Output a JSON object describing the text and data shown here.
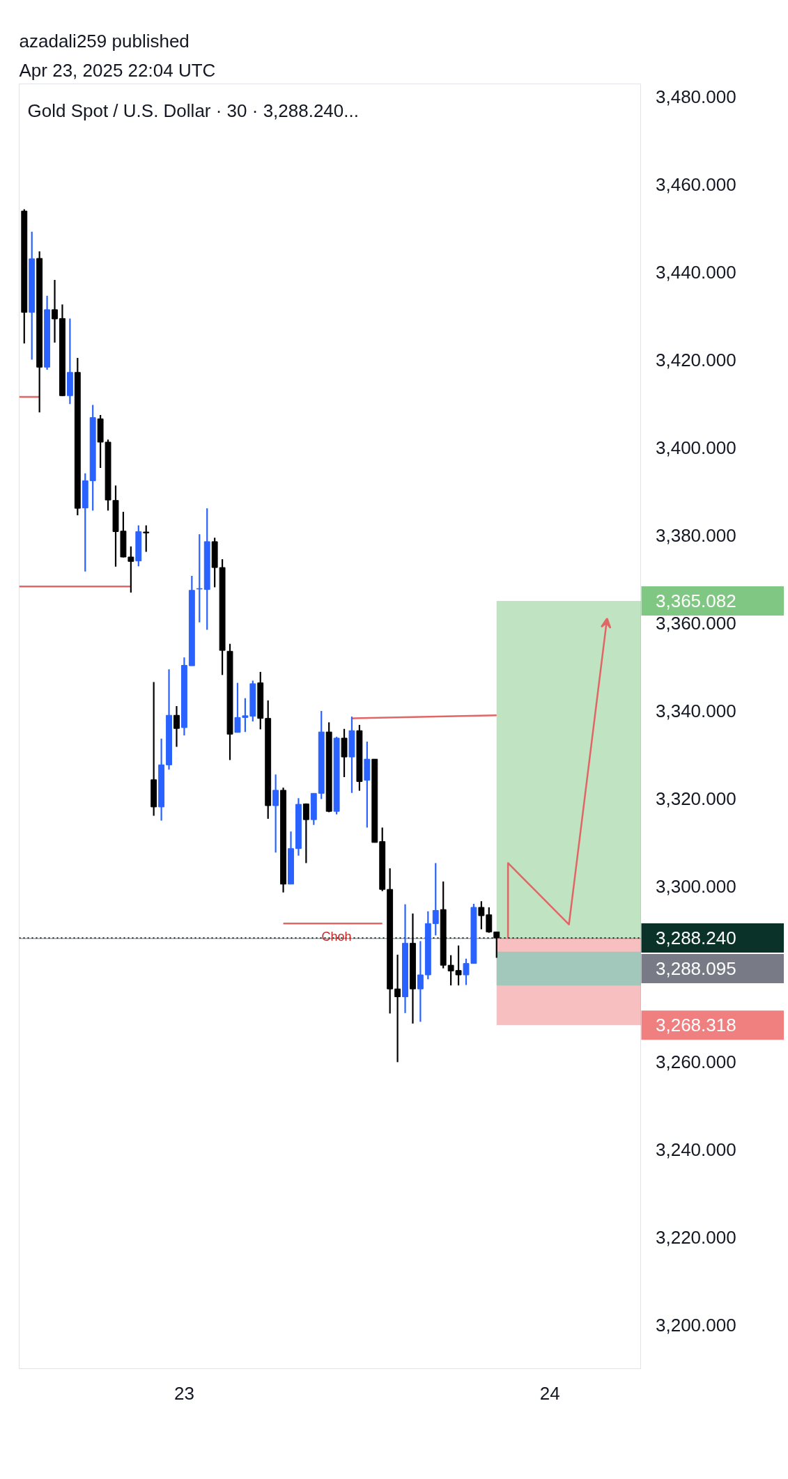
{
  "chart_data": {
    "type": "candlestick",
    "title": "Gold Spot / U.S. Dollar · 30 · 3,288.240...",
    "annotations": [
      "azadali259 published",
      "Apr 23, 2025 22:04 UTC",
      {
        "text": "Choh",
        "x": "2025-04-23T10:00",
        "y": 3288.5
      }
    ],
    "x": [
      "2025-04-22T13:30",
      "2025-04-22T14:00",
      "2025-04-22T14:30",
      "2025-04-22T15:00",
      "2025-04-22T15:30",
      "2025-04-22T16:00",
      "2025-04-22T16:30",
      "2025-04-22T17:00",
      "2025-04-22T17:30",
      "2025-04-22T18:00",
      "2025-04-22T18:30",
      "2025-04-22T19:00",
      "2025-04-22T19:30",
      "2025-04-22T20:00",
      "2025-04-22T20:30",
      "2025-04-22T21:00",
      "2025-04-22T21:30",
      "2025-04-22T22:00",
      "2025-04-22T22:30",
      "2025-04-22T23:00",
      "2025-04-22T23:30",
      "2025-04-23T00:00",
      "2025-04-23T00:30",
      "2025-04-23T01:00",
      "2025-04-23T01:30",
      "2025-04-23T02:00",
      "2025-04-23T02:30",
      "2025-04-23T03:00",
      "2025-04-23T03:30",
      "2025-04-23T04:00",
      "2025-04-23T04:30",
      "2025-04-23T05:00",
      "2025-04-23T05:30",
      "2025-04-23T06:00",
      "2025-04-23T06:30",
      "2025-04-23T07:00",
      "2025-04-23T07:30",
      "2025-04-23T08:00",
      "2025-04-23T08:30",
      "2025-04-23T09:00",
      "2025-04-23T09:30",
      "2025-04-23T10:00",
      "2025-04-23T10:30",
      "2025-04-23T11:00",
      "2025-04-23T11:30",
      "2025-04-23T12:00",
      "2025-04-23T12:30",
      "2025-04-23T13:00",
      "2025-04-23T13:30",
      "2025-04-23T14:00",
      "2025-04-23T14:30",
      "2025-04-23T15:00",
      "2025-04-23T15:30",
      "2025-04-23T16:00",
      "2025-04-23T16:30",
      "2025-04-23T17:00",
      "2025-04-23T17:30",
      "2025-04-23T18:00",
      "2025-04-23T18:30",
      "2025-04-23T19:00",
      "2025-04-23T19:30",
      "2025-04-23T20:00",
      "2025-04-23T20:30"
    ],
    "ohlc": [
      [
        3454.0,
        3454.4,
        3423.8,
        3430.9
      ],
      [
        3430.9,
        3449.3,
        3420.1,
        3443.1
      ],
      [
        3443.2,
        3444.8,
        3408.1,
        3418.4
      ],
      [
        3418.4,
        3434.7,
        3417.8,
        3431.5
      ],
      [
        3431.5,
        3438.3,
        3424.0,
        3429.4
      ],
      [
        3429.5,
        3432.7,
        3411.8,
        3411.9
      ],
      [
        3411.9,
        3429.5,
        3410.0,
        3417.2
      ],
      [
        3417.2,
        3420.5,
        3384.6,
        3386.2
      ],
      [
        3386.3,
        3394.2,
        3371.8,
        3392.5
      ],
      [
        3392.5,
        3409.8,
        3385.7,
        3406.9
      ],
      [
        3406.6,
        3407.5,
        3395.4,
        3401.3
      ],
      [
        3401.3,
        3401.9,
        3385.7,
        3388.1
      ],
      [
        3388.0,
        3391.4,
        3372.9,
        3380.9
      ],
      [
        3381.0,
        3385.4,
        3375.0,
        3375.1
      ],
      [
        3375.1,
        3377.5,
        3367.0,
        3374.1
      ],
      [
        3374.2,
        3382.3,
        3373.0,
        3380.9
      ],
      [
        3380.8,
        3382.3,
        3376.3,
        3380.6
      ],
      [
        3324.3,
        3346.6,
        3316.1,
        3318.1
      ],
      [
        3318.1,
        3333.7,
        3315.0,
        3327.7
      ],
      [
        3327.7,
        3349.5,
        3326.6,
        3339.0
      ],
      [
        3339.0,
        3341.1,
        3331.8,
        3336.0
      ],
      [
        3336.2,
        3352.2,
        3334.4,
        3350.4
      ],
      [
        3350.3,
        3370.8,
        3350.3,
        3367.5
      ],
      [
        3367.8,
        3380.3,
        3360.2,
        3367.9
      ],
      [
        3367.7,
        3386.2,
        3358.5,
        3378.6
      ],
      [
        3378.6,
        3379.5,
        3368.2,
        3372.7
      ],
      [
        3372.7,
        3374.6,
        3348.2,
        3353.8
      ],
      [
        3353.6,
        3355.3,
        3328.8,
        3334.7
      ],
      [
        3335.1,
        3346.4,
        3335.1,
        3338.5
      ],
      [
        3338.5,
        3342.9,
        3335.2,
        3338.9
      ],
      [
        3338.8,
        3346.9,
        3337.6,
        3346.2
      ],
      [
        3346.4,
        3348.9,
        3335.8,
        3338.3
      ],
      [
        3338.3,
        3342.4,
        3315.4,
        3318.4
      ],
      [
        3318.4,
        3325.5,
        3307.7,
        3321.9
      ],
      [
        3321.9,
        3322.5,
        3298.6,
        3300.5
      ],
      [
        3300.5,
        3312.5,
        3300.5,
        3308.6
      ],
      [
        3308.6,
        3320.1,
        3307.0,
        3318.7
      ],
      [
        3318.8,
        3318.9,
        3305.3,
        3315.2
      ],
      [
        3315.2,
        3321.2,
        3314.0,
        3321.2
      ],
      [
        3321.2,
        3340.0,
        3319.9,
        3335.2
      ],
      [
        3335.2,
        3337.4,
        3316.9,
        3317.1
      ],
      [
        3317.1,
        3334.1,
        3316.4,
        3333.8
      ],
      [
        3333.8,
        3335.9,
        3324.9,
        3329.5
      ],
      [
        3329.5,
        3338.7,
        3321.3,
        3335.5
      ],
      [
        3335.5,
        3336.8,
        3321.8,
        3323.9
      ],
      [
        3324.2,
        3333.0,
        3313.4,
        3329.0
      ],
      [
        3329.0,
        3329.0,
        3310.0,
        3310.0
      ],
      [
        3310.2,
        3313.4,
        3298.9,
        3299.3
      ],
      [
        3299.3,
        3304.1,
        3271.0,
        3276.6
      ],
      [
        3276.6,
        3284.4,
        3259.9,
        3274.8
      ],
      [
        3274.8,
        3295.9,
        3271.1,
        3287.0
      ],
      [
        3287.0,
        3293.8,
        3268.7,
        3276.6
      ],
      [
        3276.6,
        3287.5,
        3269.1,
        3279.8
      ],
      [
        3279.8,
        3294.3,
        3278.8,
        3291.5
      ],
      [
        3291.5,
        3305.3,
        3288.8,
        3294.5
      ],
      [
        3294.7,
        3301.1,
        3281.3,
        3282.0
      ],
      [
        3282.0,
        3284.3,
        3277.4,
        3280.7
      ],
      [
        3280.8,
        3286.5,
        3277.4,
        3279.8
      ],
      [
        3279.8,
        3283.5,
        3277.5,
        3282.4
      ],
      [
        3282.4,
        3296.0,
        3282.4,
        3295.2
      ],
      [
        3295.2,
        3296.6,
        3290.2,
        3293.3
      ],
      [
        3293.5,
        3295.2,
        3289.4,
        3289.6
      ],
      [
        3289.6,
        3289.6,
        3283.7,
        3288.24
      ]
    ],
    "colors": [
      "#000000",
      "#2962ff",
      "#000000",
      "#2962ff",
      "#000000",
      "#000000",
      "#2962ff",
      "#000000",
      "#2962ff",
      "#2962ff",
      "#000000",
      "#000000",
      "#000000",
      "#000000",
      "#000000",
      "#2962ff",
      "#000000",
      "#000000",
      "#2962ff",
      "#2962ff",
      "#000000",
      "#2962ff",
      "#2962ff",
      "#2962ff",
      "#2962ff",
      "#000000",
      "#000000",
      "#000000",
      "#2962ff",
      "#2962ff",
      "#2962ff",
      "#000000",
      "#000000",
      "#2962ff",
      "#000000",
      "#2962ff",
      "#2962ff",
      "#000000",
      "#2962ff",
      "#2962ff",
      "#000000",
      "#2962ff",
      "#000000",
      "#2962ff",
      "#000000",
      "#2962ff",
      "#000000",
      "#000000",
      "#000000",
      "#000000",
      "#2962ff",
      "#000000",
      "#2962ff",
      "#2962ff",
      "#2962ff",
      "#000000",
      "#000000",
      "#000000",
      "#2962ff",
      "#2962ff",
      "#000000",
      "#000000",
      "#000000"
    ],
    "series": [
      {
        "type": "line",
        "color": "#e06666",
        "x": [
          "2025-04-22T13:10",
          "2025-04-22T14:30"
        ],
        "values": [
          3411.6,
          3411.6
        ]
      },
      {
        "type": "line",
        "color": "#e06666",
        "x": [
          "2025-04-22T13:10",
          "2025-04-22T20:30"
        ],
        "values": [
          3368.4,
          3368.4
        ]
      },
      {
        "type": "line",
        "color": "#e06666",
        "x": [
          "2025-04-23T11:00",
          "2025-04-23T20:30"
        ],
        "values": [
          3338.3,
          3339.0
        ]
      },
      {
        "type": "line",
        "color": "#e06666",
        "x": [
          "2025-04-23T06:30",
          "2025-04-23T13:00"
        ],
        "values": [
          3291.5,
          3291.5
        ]
      },
      {
        "type": "line",
        "color": "#e06666",
        "x": [
          "2025-04-23T21:15",
          "2025-04-23T21:15",
          "2025-04-24T01:15",
          "2025-04-24T03:45"
        ],
        "values": [
          3288.24,
          3305.3,
          3291.3,
          3361.1
        ]
      }
    ],
    "bands": [
      {
        "axis": "y",
        "from": 3288.24,
        "to": 3365.082,
        "label": "3,365.082",
        "color": "#81c784"
      },
      {
        "axis": "y",
        "from": 3268.318,
        "to": 3288.24,
        "label": "3,268.318",
        "color": "#f07f80"
      },
      {
        "axis": "y",
        "from": 3277.4,
        "to": 3285.1,
        "label": null,
        "color": "#4dd0b8"
      }
    ],
    "ref_lines": [
      {
        "axis": "y",
        "value": 3288.24,
        "label": "3,288.240",
        "color": "#0b3228",
        "line_style": "dotted"
      },
      {
        "axis": "y",
        "value": 3288.095,
        "label": "3,288.095",
        "color": "#787b86",
        "line_style": "solid"
      }
    ],
    "xlim": [
      "2025-04-22T13:10",
      "2025-04-24T06:00"
    ],
    "xticks": [
      {
        "value": "2025-04-23T00:00",
        "label": "23"
      },
      {
        "value": "2025-04-24T00:00",
        "label": "24"
      }
    ],
    "ylim": [
      3190,
      3483
    ],
    "yticks": [
      {
        "value": 3200,
        "label": "3,200.000"
      },
      {
        "value": 3220,
        "label": "3,220.000"
      },
      {
        "value": 3240,
        "label": "3,240.000"
      },
      {
        "value": 3260,
        "label": "3,260.000"
      },
      {
        "value": 3300,
        "label": "3,300.000"
      },
      {
        "value": 3320,
        "label": "3,320.000"
      },
      {
        "value": 3340,
        "label": "3,340.000"
      },
      {
        "value": 3360,
        "label": "3,360.000"
      },
      {
        "value": 3380,
        "label": "3,380.000"
      },
      {
        "value": 3400,
        "label": "3,400.000"
      },
      {
        "value": 3420,
        "label": "3,420.000"
      },
      {
        "value": 3440,
        "label": "3,440.000"
      },
      {
        "value": 3460,
        "label": "3,460.000"
      },
      {
        "value": 3480,
        "label": "3,480.000"
      }
    ]
  }
}
